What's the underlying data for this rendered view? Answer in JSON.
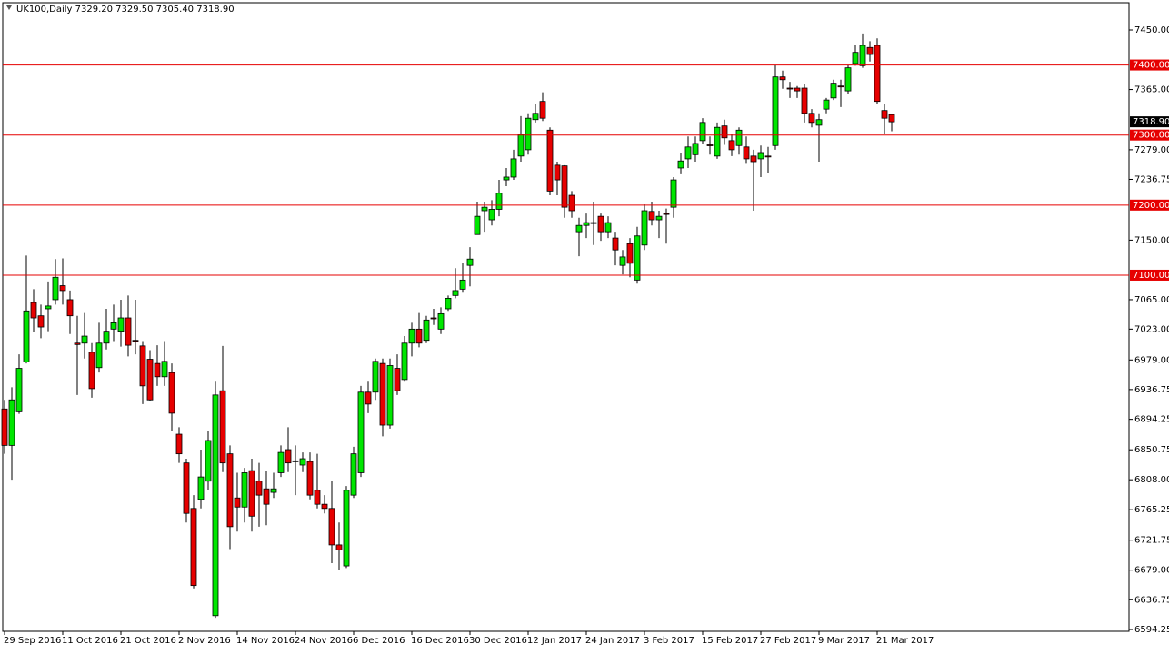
{
  "chart_data": {
    "type": "candlestick",
    "title": "UK100,Daily  7329.20 7329.50 7305.40 7318.90",
    "categories": [
      "29 Sep 2016",
      null,
      null,
      null,
      null,
      null,
      null,
      null,
      "11 Oct 2016",
      null,
      null,
      null,
      null,
      null,
      null,
      null,
      "21 Oct 2016",
      null,
      null,
      null,
      null,
      null,
      null,
      null,
      "2 Nov 2016",
      null,
      null,
      null,
      null,
      null,
      null,
      null,
      "14 Nov 2016",
      null,
      null,
      null,
      null,
      null,
      null,
      null,
      "24 Nov 2016",
      null,
      null,
      null,
      null,
      null,
      null,
      null,
      "6 Dec 2016",
      null,
      null,
      null,
      null,
      null,
      null,
      null,
      "16 Dec 2016",
      null,
      null,
      null,
      null,
      null,
      null,
      null,
      "30 Dec 2016",
      null,
      null,
      null,
      null,
      null,
      null,
      null,
      "12 Jan 2017",
      null,
      null,
      null,
      null,
      null,
      null,
      null,
      "24 Jan 2017",
      null,
      null,
      null,
      null,
      null,
      null,
      null,
      "3 Feb 2017",
      null,
      null,
      null,
      null,
      null,
      null,
      null,
      "15 Feb 2017",
      null,
      null,
      null,
      null,
      null,
      null,
      null,
      "27 Feb 2017",
      null,
      null,
      null,
      null,
      null,
      null,
      null,
      "9 Mar 2017",
      null,
      null,
      null,
      null,
      null,
      null,
      null,
      "21 Mar 2017",
      null,
      null
    ],
    "open": [
      6909,
      6857,
      6905,
      6976,
      7061,
      7042,
      7052,
      7065,
      7085,
      7065,
      7003,
      7003,
      6990,
      6968,
      7003,
      7023,
      7020,
      7039,
      7007,
      6999,
      6980,
      6974,
      6955,
      6961,
      6873,
      6832,
      6767,
      6780,
      6806,
      6614,
      6935,
      6845,
      6782,
      6769,
      6821,
      6806,
      6795,
      6790,
      6818,
      6851,
      6834,
      6829,
      6834,
      6793,
      6773,
      6767,
      6715,
      6685,
      6786,
      6818,
      6933,
      6933,
      6974,
      6886,
      6967,
      6951,
      7003,
      7023,
      7007,
      7039,
      7023,
      7052,
      7071,
      7080,
      7114,
      7158,
      7192,
      7179,
      7194,
      7236,
      7240,
      7270,
      7279,
      7322,
      7348,
      7307,
      7257,
      7256,
      7214,
      7162,
      7171,
      7175,
      7184,
      7162,
      7153,
      7114,
      7145,
      7093,
      7143,
      7191,
      7179,
      7188,
      7197,
      7253,
      7266,
      7272,
      7292,
      7286,
      7270,
      7313,
      7292,
      7285,
      7283,
      7270,
      7266,
      7270,
      7285,
      7383,
      7367,
      7367,
      7367,
      7331,
      7314,
      7337,
      7353,
      7370,
      7363,
      7402,
      7399,
      7425,
      7428,
      7335,
      7329.2
    ],
    "high": [
      6922,
      6940,
      6987,
      7128,
      7080,
      7058,
      7091,
      7123,
      7124,
      7078,
      7042,
      7046,
      7003,
      7032,
      7052,
      7058,
      7065,
      7071,
      7065,
      7006,
      6993,
      7000,
      7006,
      6974,
      6883,
      6838,
      6786,
      6851,
      6877,
      6948,
      6999,
      6857,
      6818,
      6825,
      6838,
      6832,
      6821,
      6818,
      6857,
      6883,
      6857,
      6847,
      6847,
      6845,
      6786,
      6806,
      6747,
      6799,
      6855,
      6942,
      6948,
      6981,
      6981,
      6981,
      6987,
      7013,
      7032,
      7046,
      7042,
      7052,
      7054,
      7071,
      7110,
      7117,
      7140,
      7205,
      7205,
      7207,
      7236,
      7253,
      7279,
      7327,
      7331,
      7344,
      7361,
      7311,
      7262,
      7257,
      7220,
      7182,
      7188,
      7205,
      7188,
      7184,
      7162,
      7136,
      7153,
      7169,
      7201,
      7205,
      7192,
      7195,
      7240,
      7275,
      7298,
      7298,
      7324,
      7298,
      7318,
      7322,
      7301,
      7311,
      7298,
      7279,
      7285,
      7283,
      7400,
      7392,
      7376,
      7370,
      7373,
      7337,
      7331,
      7353,
      7379,
      7379,
      7400,
      7428,
      7445,
      7434,
      7438,
      7344,
      7329.5
    ],
    "low": [
      6845,
      6808,
      6902,
      6974,
      7019,
      7010,
      7020,
      7058,
      7058,
      7016,
      6929,
      6981,
      6925,
      6961,
      6994,
      7006,
      6998,
      6984,
      6987,
      6916,
      6920,
      6942,
      6942,
      6877,
      6832,
      6747,
      6653,
      6767,
      6793,
      6611,
      6819,
      6709,
      6734,
      6747,
      6734,
      6741,
      6743,
      6782,
      6812,
      6819,
      6786,
      6819,
      6780,
      6767,
      6760,
      6689,
      6679,
      6682,
      6782,
      6812,
      6903,
      6922,
      6870,
      6881,
      6929,
      6948,
      6984,
      6997,
      7003,
      7029,
      7016,
      7049,
      7067,
      7075,
      7084,
      7158,
      7162,
      7171,
      7184,
      7227,
      7236,
      7262,
      7272,
      7318,
      7320,
      7214,
      7214,
      7182,
      7182,
      7127,
      7153,
      7143,
      7149,
      7153,
      7114,
      7101,
      7097,
      7088,
      7136,
      7171,
      7153,
      7145,
      7182,
      7244,
      7253,
      7262,
      7288,
      7272,
      7266,
      7286,
      7270,
      7272,
      7259,
      7192,
      7240,
      7246,
      7279,
      7366,
      7353,
      7353,
      7318,
      7311,
      7262,
      7331,
      7350,
      7340,
      7359,
      7399,
      7396,
      7405,
      7344,
      7301,
      7305.4
    ],
    "close": [
      6857,
      6922,
      6967,
      7049,
      7039,
      7026,
      7056,
      7097,
      7078,
      7042,
      7001,
      7013,
      6938,
      7003,
      7020,
      7032,
      7039,
      7000,
      7006,
      6942,
      6922,
      6955,
      6977,
      6903,
      6845,
      6760,
      6657,
      6812,
      6864,
      6929,
      6832,
      6741,
      6769,
      6818,
      6756,
      6786,
      6773,
      6795,
      6847,
      6832,
      6835,
      6838,
      6786,
      6773,
      6767,
      6715,
      6708,
      6793,
      6845,
      6933,
      6916,
      6977,
      6886,
      6971,
      6935,
      7003,
      7023,
      7003,
      7036,
      7038,
      7045,
      7067,
      7078,
      7093,
      7123,
      7184,
      7197,
      7194,
      7217,
      7240,
      7266,
      7301,
      7324,
      7331,
      7324,
      7220,
      7236,
      7197,
      7192,
      7171,
      7175,
      7174,
      7162,
      7175,
      7136,
      7126,
      7117,
      7156,
      7192,
      7179,
      7184,
      7187,
      7236,
      7263,
      7283,
      7288,
      7318,
      7285,
      7311,
      7296,
      7279,
      7307,
      7266,
      7262,
      7275,
      7269,
      7383,
      7379,
      7366,
      7363,
      7331,
      7318,
      7322,
      7350,
      7374,
      7369,
      7396,
      7418,
      7428,
      7415,
      7348,
      7324,
      7318.9
    ],
    "up_color": "#00e600",
    "down_color": "#e60000",
    "ylim": [
      6589.12,
      7487.6
    ],
    "yticks": [
      {
        "value": 7450,
        "label": "7450.00"
      },
      {
        "value": 7365,
        "label": "7365.00"
      },
      {
        "value": 7279,
        "label": "7279.00"
      },
      {
        "value": 7236.75,
        "label": "7236.75"
      },
      {
        "value": 7150,
        "label": "7150.00"
      },
      {
        "value": 7065,
        "label": "7065.00"
      },
      {
        "value": 7023,
        "label": "7023.00"
      },
      {
        "value": 6979,
        "label": "6979.00"
      },
      {
        "value": 6936.75,
        "label": "6936.75"
      },
      {
        "value": 6894.25,
        "label": "6894.25"
      },
      {
        "value": 6850.75,
        "label": "6850.75"
      },
      {
        "value": 6808,
        "label": "6808.00"
      },
      {
        "value": 6765.25,
        "label": "6765.25"
      },
      {
        "value": 6721.75,
        "label": "6721.75"
      },
      {
        "value": 6679,
        "label": "6679.00"
      },
      {
        "value": 6636.75,
        "label": "6636.75"
      },
      {
        "value": 6594.25,
        "label": "6594.25"
      }
    ],
    "levels": [
      {
        "value": 7400,
        "label": "7400.00"
      },
      {
        "value": 7300,
        "label": "7300.00"
      },
      {
        "value": 7200,
        "label": "7200.00"
      },
      {
        "value": 7100,
        "label": "7100.00"
      }
    ],
    "level_color": "#e60000",
    "current_price": {
      "value": 7318.9,
      "label": "7318.90"
    }
  }
}
